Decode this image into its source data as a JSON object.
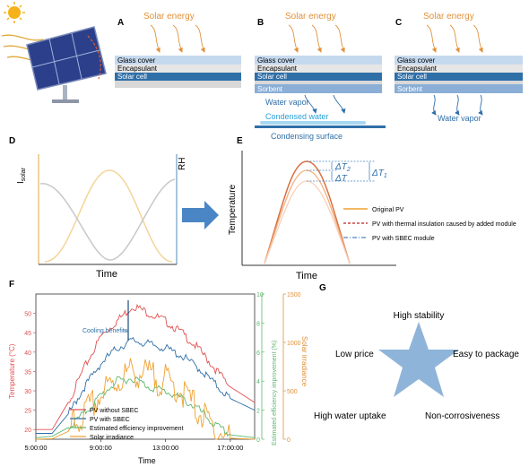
{
  "panels": {
    "A": {
      "letter": "A",
      "energy": "Solar energy",
      "layers": [
        "Glass cover",
        "Encapsulant",
        "Solar cell"
      ]
    },
    "B": {
      "letter": "B",
      "energy": "Solar energy",
      "layers": [
        "Glass cover",
        "Encapsulant",
        "Solar cell",
        "Sorbent"
      ],
      "vapor": "Water vapor",
      "condensed": "Condensed water",
      "surface": "Condensing surface"
    },
    "C": {
      "letter": "C",
      "energy": "Solar energy",
      "layers": [
        "Glass cover",
        "Encapsulant",
        "Solar cell",
        "Sorbent"
      ],
      "vapor": "Water vapor"
    },
    "D": {
      "letter": "D",
      "ylabel_main": "I",
      "ylabel_sub": "solar",
      "ylabel_right": "RH",
      "xlabel": "Time"
    },
    "E": {
      "letter": "E",
      "ylabel": "Temperature",
      "xlabel": "Time",
      "dt2": "ΔT",
      "dt2_sub": "2",
      "dt": "ΔT",
      "dt1": "ΔT",
      "dt1_sub": "1",
      "legend": [
        "Original PV",
        "PV with thermal insulation caused by added module",
        "PV with SBEC module"
      ]
    },
    "F": {
      "letter": "F",
      "ylabel_left": "Temperature (°C)",
      "ylabel_mid": "Estimated efficiency improvement (%)",
      "ylabel_right": "Solar irradiance",
      "xlabel": "Time",
      "annotation": "Cooling benefits",
      "legend": [
        "PV without SBEC",
        "PV with SBEC",
        "Estimated efficiency improvement",
        "Solar irradiance"
      ]
    },
    "G": {
      "letter": "G",
      "labels": [
        "High stability",
        "Low price",
        "Easy to package",
        "High water uptake",
        "Non-corrosiveness"
      ]
    }
  },
  "colors": {
    "orange": "#e0913a",
    "red": "#e05050",
    "blue": "#2f6fa8",
    "green": "#5fb870",
    "lightblue": "#a8c8e6",
    "arrow": "#4a86c5"
  },
  "chart_data": {
    "type": "line",
    "title": "",
    "xlabel": "Time",
    "x_ticks": [
      "5:00:00",
      "9:00:00",
      "13:00:00",
      "17:00:00"
    ],
    "y_left": {
      "label": "Temperature (°C)",
      "ticks": [
        20,
        25,
        30,
        35,
        40,
        45,
        50
      ]
    },
    "y_mid": {
      "label": "Estimated efficiency improvement (%)",
      "ticks": [
        0,
        2,
        4,
        6,
        8,
        10
      ]
    },
    "y_right": {
      "label": "Solar irradiance",
      "ticks": [
        0,
        500,
        1000,
        1500
      ]
    },
    "xlim": [
      5,
      18.5
    ],
    "series": [
      {
        "name": "PV without SBEC",
        "axis": "left",
        "x": [
          5,
          6,
          7,
          8,
          9,
          10,
          11,
          12,
          13,
          14,
          15,
          16,
          17,
          18.5
        ],
        "values": [
          20,
          20,
          27,
          36,
          44,
          48,
          52,
          50,
          48,
          45,
          41,
          36,
          31,
          27
        ]
      },
      {
        "name": "PV with SBEC",
        "axis": "left",
        "x": [
          5,
          6,
          7,
          8,
          9,
          10,
          11,
          12,
          13,
          14,
          15,
          16,
          17,
          18.5
        ],
        "values": [
          19,
          19,
          24,
          31,
          37,
          41,
          43,
          42,
          41,
          39,
          36,
          32,
          28,
          25
        ]
      },
      {
        "name": "Estimated efficiency improvement",
        "axis": "mid",
        "x": [
          5,
          6,
          7,
          8,
          9,
          10,
          11,
          12,
          13,
          14,
          15,
          16,
          17,
          18.5
        ],
        "values": [
          0.1,
          0.2,
          0.8,
          1.8,
          3.0,
          4.0,
          4.2,
          3.6,
          3.3,
          2.8,
          2.1,
          1.0,
          0.3,
          0.1
        ]
      },
      {
        "name": "Solar irradiance",
        "axis": "right",
        "x": [
          5,
          6,
          7,
          8,
          9,
          10,
          11,
          12,
          13,
          14,
          15,
          16,
          17,
          18.5
        ],
        "values": [
          0,
          5,
          80,
          250,
          450,
          600,
          700,
          650,
          600,
          500,
          300,
          100,
          10,
          0
        ]
      }
    ]
  }
}
